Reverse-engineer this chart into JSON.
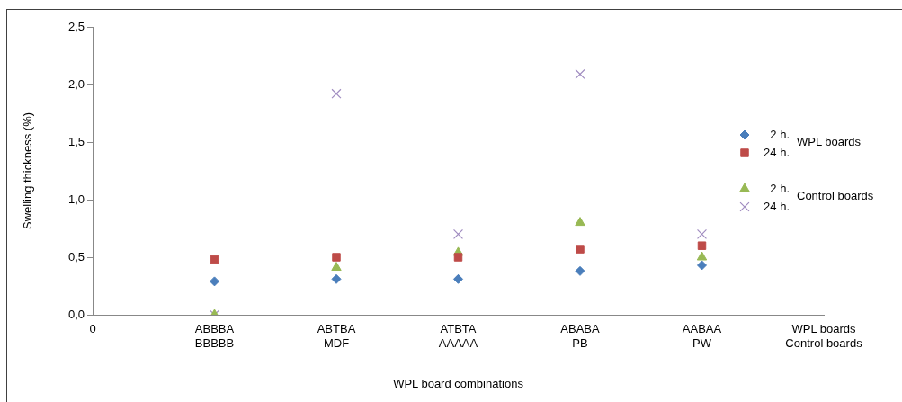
{
  "chart_data": {
    "type": "scatter",
    "xlabel": "WPL board combinations",
    "ylabel": "Swelling thickness (%)",
    "categories": [
      "0",
      "ABBBA\nBBBBB",
      "ABTBA\nMDF",
      "ATBTA\nAAAAA",
      "ABABA\nPB",
      "AABAA\nPW",
      "WPL boards\nControl boards"
    ],
    "ylim": [
      0,
      2.5
    ],
    "yticks": [
      {
        "value": 0,
        "label": "0,0"
      },
      {
        "value": 0.5,
        "label": "0,5"
      },
      {
        "value": 1,
        "label": "1,0"
      },
      {
        "value": 1.5,
        "label": "1,5"
      },
      {
        "value": 2,
        "label": "2,0"
      },
      {
        "value": 2.5,
        "label": "2,5"
      }
    ],
    "grid": false,
    "legend": "right",
    "annotations": [
      "WPL boards",
      "Control boards"
    ],
    "series": [
      {
        "name": "2 h.",
        "color": "#4a7ebb",
        "marker": "diamond",
        "values": [
          null,
          0.29,
          0.31,
          0.31,
          0.38,
          0.43,
          null
        ]
      },
      {
        "name": "24 h.",
        "color": "#be4b48",
        "marker": "square",
        "values": [
          null,
          0.48,
          0.5,
          0.5,
          0.57,
          0.6,
          null
        ]
      },
      {
        "name": "2 h.",
        "color": "#98b954",
        "marker": "triangle",
        "values": [
          null,
          0.0,
          0.41,
          0.54,
          0.8,
          0.5,
          null
        ]
      },
      {
        "name": "24 h.",
        "color": "#a08cc0",
        "marker": "cross",
        "values": [
          null,
          0.0,
          1.92,
          0.7,
          2.09,
          0.7,
          null
        ]
      }
    ]
  }
}
